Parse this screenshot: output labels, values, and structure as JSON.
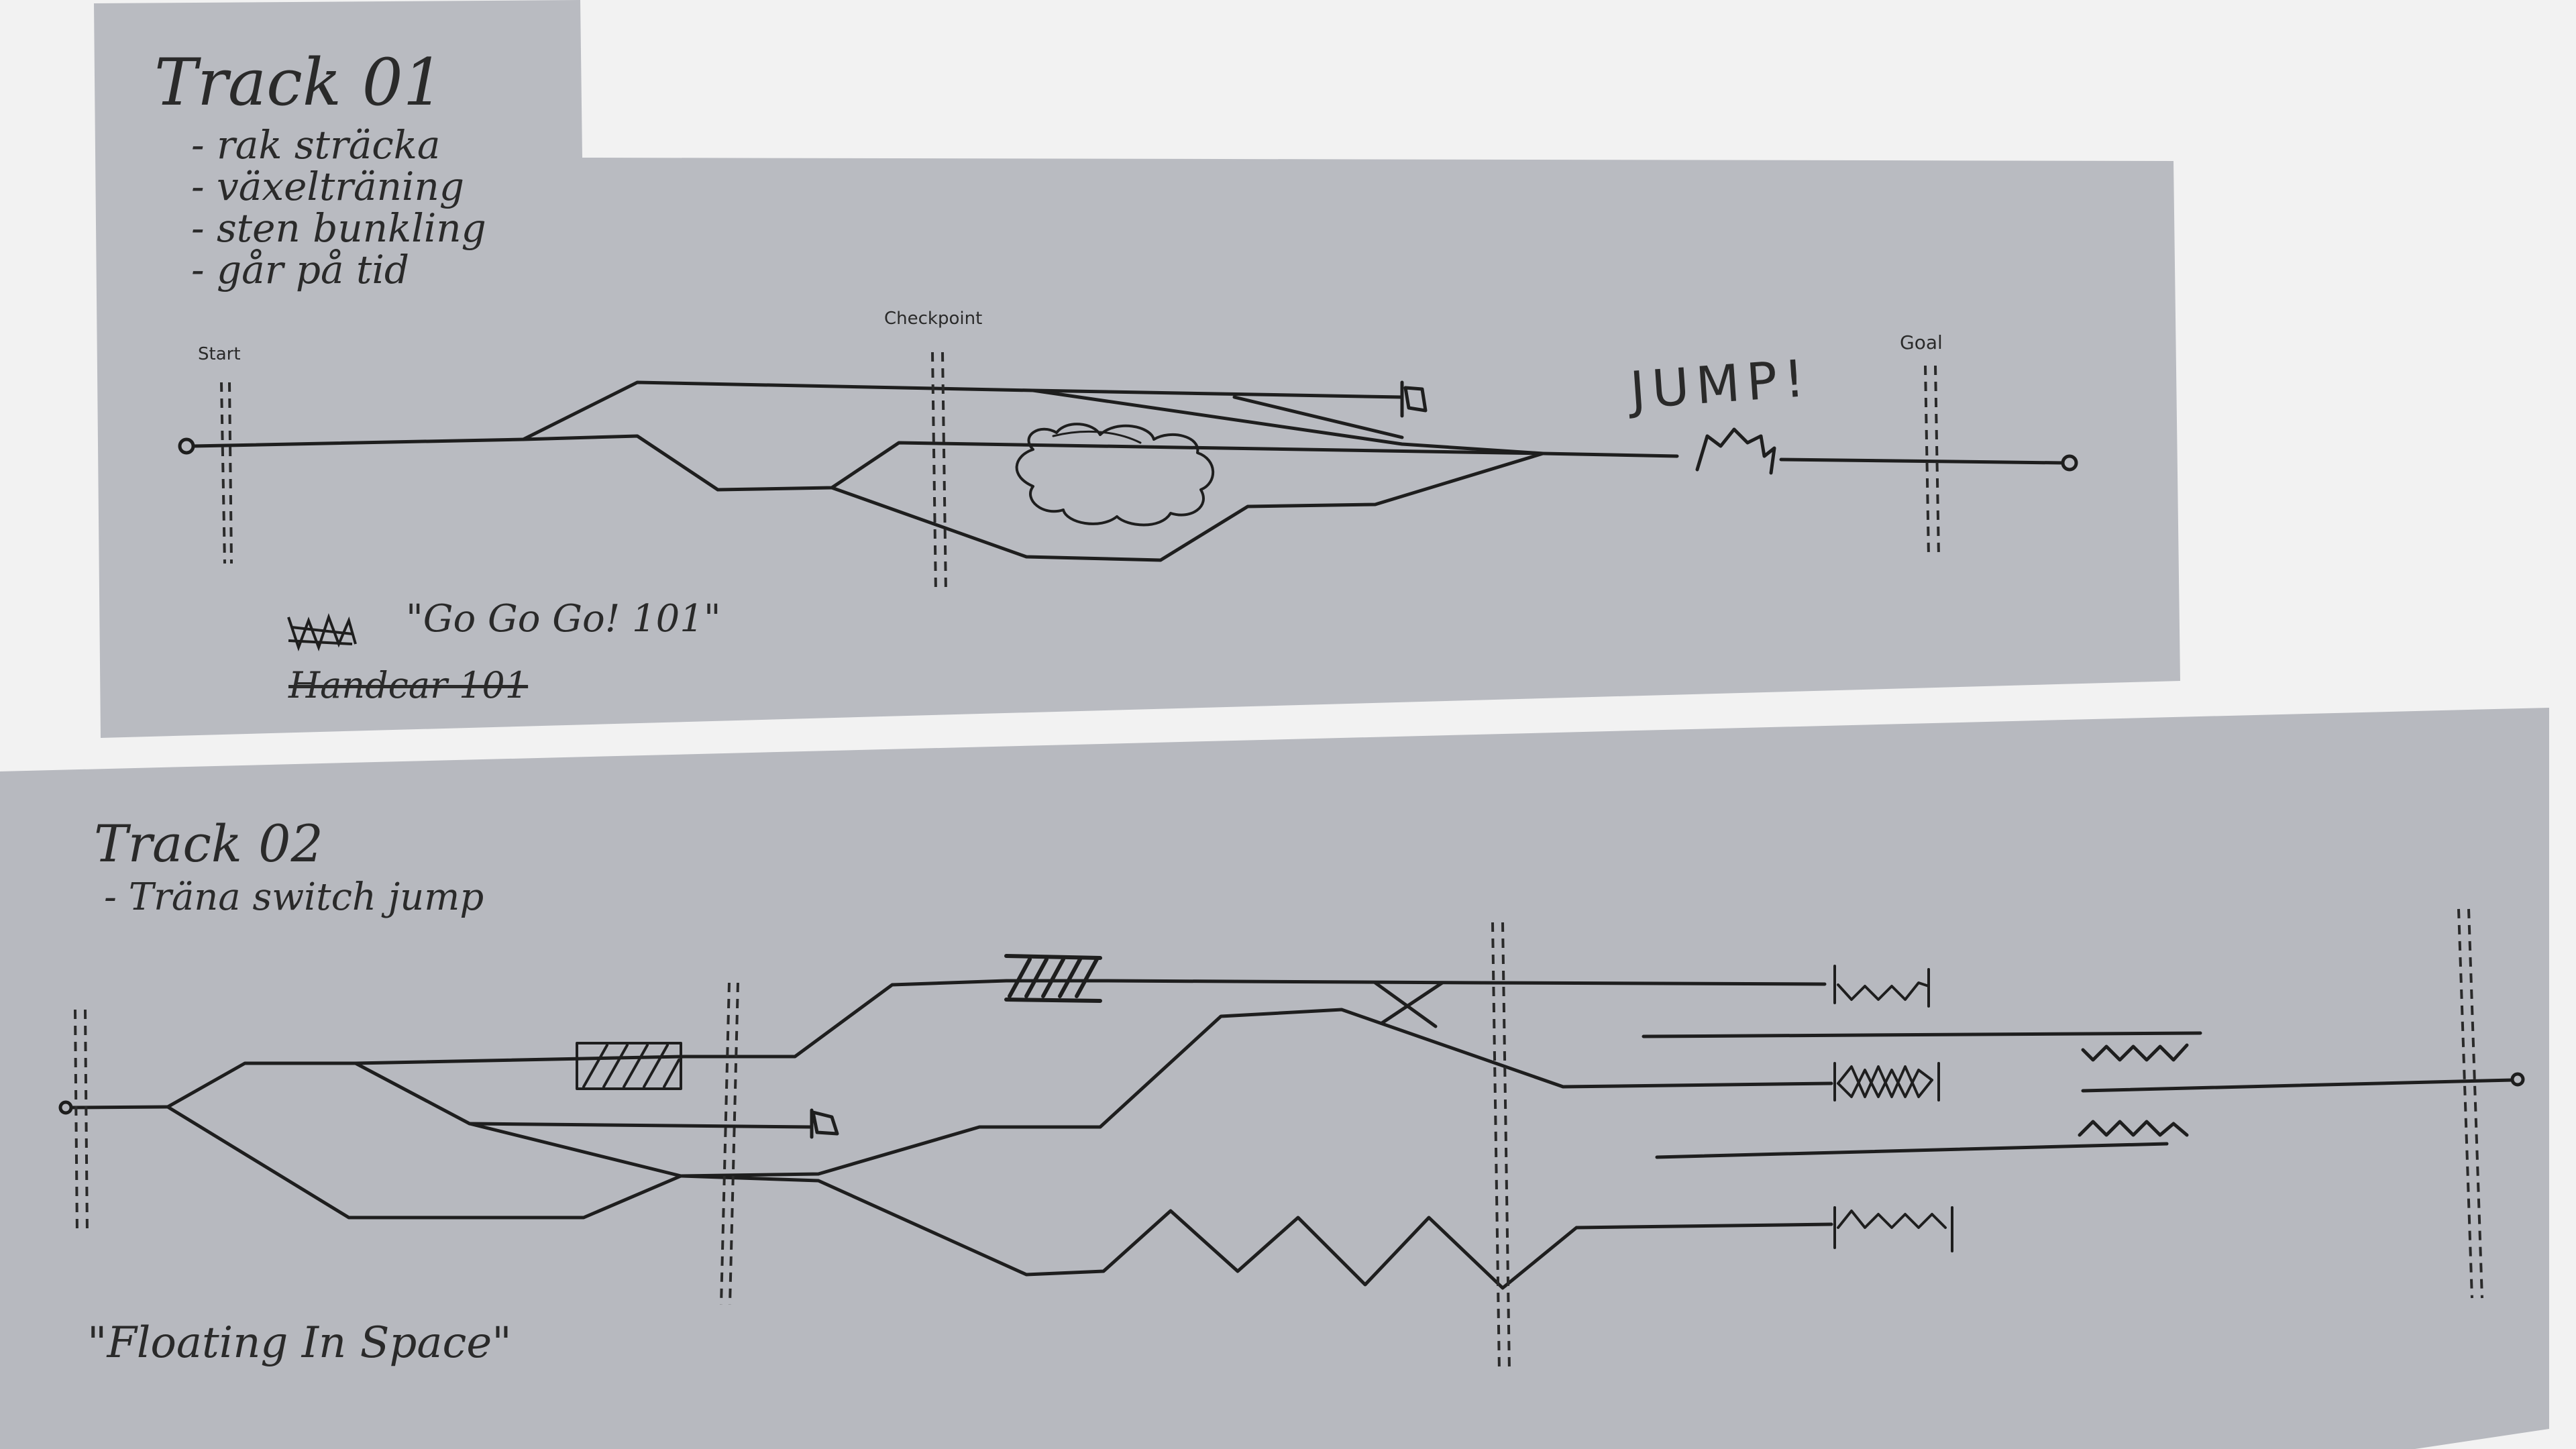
{
  "track1": {
    "title": "Track 01",
    "notes": [
      "- rak sträcka",
      "- växelträning",
      "- sten bunkling",
      "- går på tid"
    ],
    "start_label": "Start",
    "checkpoint_label": "Checkpoint",
    "goal_label": "Goal",
    "jump_label": "JUMP!",
    "struck_label": "Handcar 101",
    "name_label": "\"Go Go Go! 101\""
  },
  "track2": {
    "title": "Track 02",
    "note": "- Träna switch jump",
    "name_label": "\"Floating In Space\""
  },
  "colors": {
    "background": "#f2f2f2",
    "paper": "#b9bbc1",
    "ink": "#1e1e1e"
  }
}
